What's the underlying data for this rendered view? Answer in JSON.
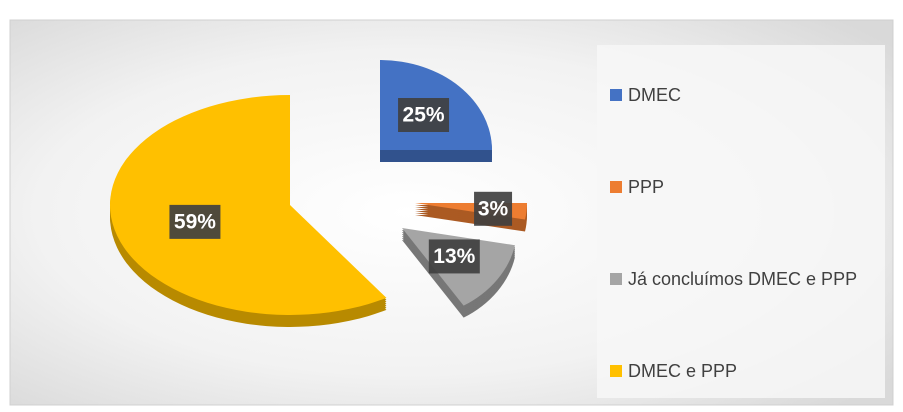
{
  "chart_data": {
    "type": "pie",
    "categories": [
      "DMEC",
      "PPP",
      "Já concluímos DMEC e PPP",
      "DMEC e PPP"
    ],
    "values": [
      25,
      3,
      13,
      59
    ],
    "value_labels": [
      "25%",
      "3%",
      "13%",
      "59%"
    ],
    "colors": [
      "#4472c4",
      "#ed7d31",
      "#a5a5a5",
      "#ffc000"
    ],
    "legend": "right"
  }
}
